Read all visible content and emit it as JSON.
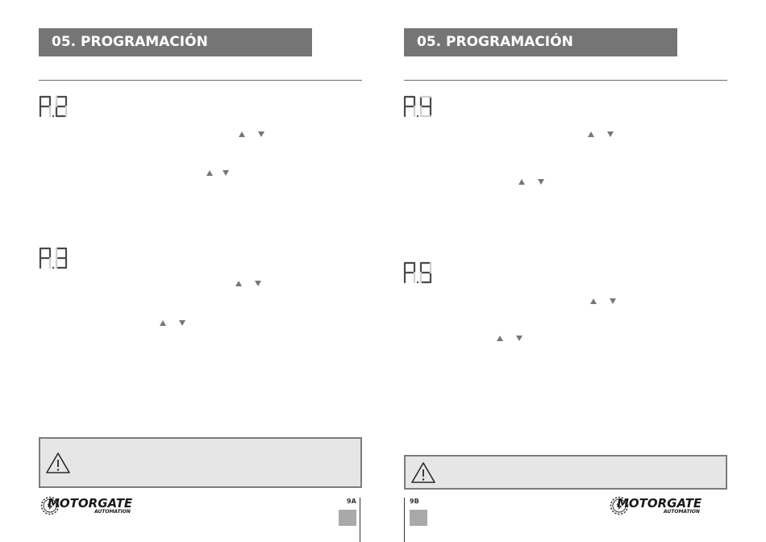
{
  "left_page": {
    "header": "05. PROGRAMACIÓN",
    "params": [
      {
        "code": "P2",
        "char1": "P",
        "char2": "2"
      },
      {
        "code": "P3",
        "char1": "P",
        "char2": "3"
      }
    ],
    "page_number": "9A"
  },
  "right_page": {
    "header": "05. PROGRAMACIÓN",
    "params": [
      {
        "code": "P4",
        "char1": "P",
        "char2": "4"
      },
      {
        "code": "P5",
        "char1": "P",
        "char2": "5"
      }
    ],
    "page_number": "9B"
  },
  "logo": {
    "brand": "MOTORGATE",
    "tagline": "AUTOMATION"
  },
  "icons": {
    "warning": "warning-triangle-icon",
    "up": "arrow-up-icon",
    "down": "arrow-down-icon",
    "gear": "gear-icon"
  },
  "colors": {
    "header_bg": "#757575",
    "warning_bg": "#e6e6e6",
    "arrow": "#777777",
    "page_box": "#a9a9a9"
  }
}
